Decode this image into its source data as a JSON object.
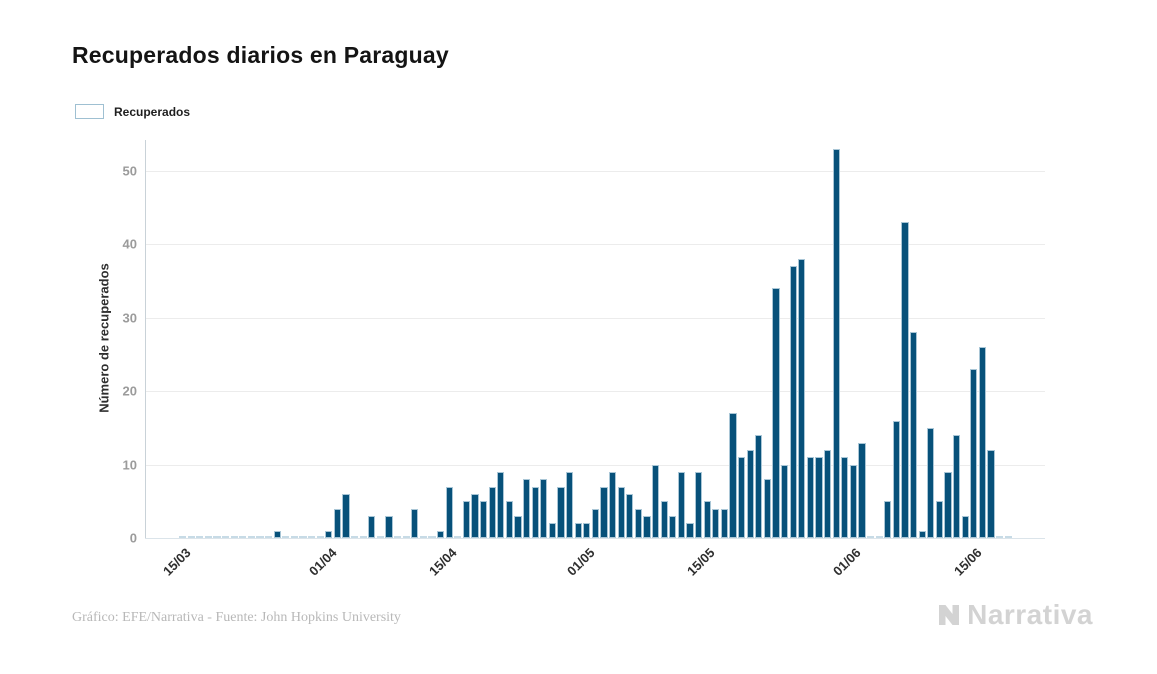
{
  "title": "Recuperados diarios en Paraguay",
  "legend": {
    "label": "Recuperados",
    "swatch_color": "#07517a"
  },
  "y_axis": {
    "title": "Número de recuperados",
    "ticks": [
      0,
      10,
      20,
      30,
      40,
      50
    ]
  },
  "x_axis": {
    "tick_labels": [
      "15/03",
      "01/04",
      "15/04",
      "01/05",
      "15/05",
      "01/06",
      "15/06"
    ],
    "tick_day_indices": [
      0,
      17,
      31,
      47,
      61,
      78,
      92
    ]
  },
  "footer": {
    "credit": "Gráfico: EFE/Narrativa - Fuente: John Hopkins University"
  },
  "watermark": {
    "text": "Narrativa"
  },
  "colors": {
    "bar_fill": "#07517a",
    "bar_edge": "#a9c6d6",
    "zero_dash": "#c7dbe6",
    "gridline": "#ececec",
    "title_text": "#141414",
    "x_tick_text": "#2e2e2e",
    "y_tick_text": "#9b9b9b",
    "footer_text": "#b8b8b8",
    "watermark_text": "#d3d3d3"
  },
  "chart_data": {
    "type": "bar",
    "title": "Recuperados diarios en Paraguay",
    "xlabel": "",
    "ylabel": "Número de recuperados",
    "ylim": [
      0,
      55
    ],
    "grid": true,
    "legend_position": "top-left",
    "series_name": "Recuperados",
    "start_date": "15/03",
    "end_date": "19/06",
    "x": [
      "15/03",
      "16/03",
      "17/03",
      "18/03",
      "19/03",
      "20/03",
      "21/03",
      "22/03",
      "23/03",
      "24/03",
      "25/03",
      "26/03",
      "27/03",
      "28/03",
      "29/03",
      "30/03",
      "31/03",
      "01/04",
      "02/04",
      "03/04",
      "04/04",
      "05/04",
      "06/04",
      "07/04",
      "08/04",
      "09/04",
      "10/04",
      "11/04",
      "12/04",
      "13/04",
      "14/04",
      "15/04",
      "16/04",
      "17/04",
      "18/04",
      "19/04",
      "20/04",
      "21/04",
      "22/04",
      "23/04",
      "24/04",
      "25/04",
      "26/04",
      "27/04",
      "28/04",
      "29/04",
      "30/04",
      "01/05",
      "02/05",
      "03/05",
      "04/05",
      "05/05",
      "06/05",
      "07/05",
      "08/05",
      "09/05",
      "10/05",
      "11/05",
      "12/05",
      "13/05",
      "14/05",
      "15/05",
      "16/05",
      "17/05",
      "18/05",
      "19/05",
      "20/05",
      "21/05",
      "22/05",
      "23/05",
      "24/05",
      "25/05",
      "26/05",
      "27/05",
      "28/05",
      "29/05",
      "30/05",
      "31/05",
      "01/06",
      "02/06",
      "03/06",
      "04/06",
      "05/06",
      "06/06",
      "07/06",
      "08/06",
      "09/06",
      "10/06",
      "11/06",
      "12/06",
      "13/06",
      "14/06",
      "15/06",
      "16/06",
      "17/06",
      "18/06",
      "19/06"
    ],
    "values": [
      0,
      0,
      0,
      0,
      0,
      0,
      0,
      0,
      0,
      0,
      0,
      1,
      0,
      0,
      0,
      0,
      0,
      1,
      4,
      6,
      0,
      0,
      3,
      0,
      3,
      0,
      0,
      4,
      0,
      0,
      1,
      7,
      0,
      5,
      6,
      5,
      7,
      9,
      5,
      3,
      8,
      7,
      8,
      2,
      7,
      9,
      2,
      2,
      4,
      7,
      9,
      7,
      6,
      4,
      3,
      10,
      5,
      3,
      9,
      2,
      9,
      5,
      4,
      4,
      17,
      11,
      12,
      14,
      8,
      34,
      10,
      37,
      38,
      11,
      11,
      12,
      53,
      11,
      10,
      13,
      0,
      0,
      5,
      16,
      43,
      28,
      1,
      15,
      5,
      9,
      14,
      3,
      23,
      26,
      12,
      0,
      0
    ]
  }
}
